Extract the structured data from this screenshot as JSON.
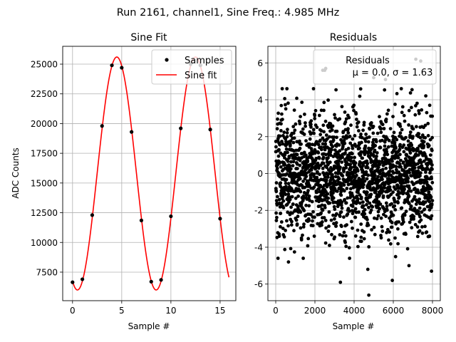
{
  "figure": {
    "suptitle": "Run 2161, channel1, Sine Freq.: 4.985 MHz"
  },
  "colors": {
    "samples": "#000000",
    "fit": "#ff0000",
    "grid": "#b0b0b0",
    "axes": "#000000"
  },
  "chart_data": [
    {
      "type": "line",
      "title": "Sine Fit",
      "xlabel": "Sample #",
      "ylabel": "ADC Counts",
      "xlim": [
        -1.0,
        16.6
      ],
      "ylim": [
        5100,
        26500
      ],
      "xticks": [
        0,
        5,
        10,
        15
      ],
      "yticks": [
        7500,
        10000,
        12500,
        15000,
        17500,
        20000,
        22500,
        25000
      ],
      "grid": true,
      "legend": {
        "position": "top-right",
        "entries": [
          "Samples",
          "Sine fit"
        ]
      },
      "series": [
        {
          "name": "Samples",
          "kind": "scatter",
          "x": [
            0,
            1,
            2,
            3,
            4,
            5,
            6,
            7,
            8,
            9,
            10,
            11,
            12,
            13,
            14,
            15
          ],
          "y": [
            6650,
            6900,
            12300,
            19800,
            24900,
            24700,
            19300,
            11850,
            6700,
            6850,
            12200,
            19600,
            25000,
            24900,
            19500,
            12000
          ]
        },
        {
          "name": "Sine fit",
          "kind": "line",
          "model": {
            "offset": 15800,
            "amplitude": 9800,
            "period": 8.0,
            "peak_x": 4.5,
            "x_range": [
              0,
              15.9
            ]
          }
        }
      ]
    },
    {
      "type": "scatter",
      "title": "Residuals",
      "xlabel": "Sample #",
      "ylabel": "",
      "xlim": [
        -400,
        8400
      ],
      "ylim": [
        -6.9,
        6.9
      ],
      "xticks": [
        0,
        2000,
        4000,
        6000,
        8000
      ],
      "yticks": [
        -6,
        -4,
        -2,
        0,
        2,
        4,
        6
      ],
      "grid": true,
      "legend": {
        "position": "top-right",
        "entries": [
          "Residuals",
          "μ = 0.0, σ = 1.63"
        ]
      },
      "series": [
        {
          "name": "Residuals",
          "stats": {
            "n": 8000,
            "mean": 0.0,
            "sigma": 1.63
          },
          "outliers": [
            {
              "x": 2400,
              "y": 5.6
            },
            {
              "x": 2550,
              "y": 5.7
            },
            {
              "x": 7150,
              "y": 6.2
            },
            {
              "x": 7400,
              "y": 6.1
            },
            {
              "x": 5000,
              "y": 5.2
            },
            {
              "x": 4750,
              "y": -6.6
            },
            {
              "x": 3300,
              "y": -5.9
            },
            {
              "x": 5950,
              "y": -5.8
            },
            {
              "x": 4700,
              "y": -5.2
            },
            {
              "x": 6800,
              "y": -5.0
            },
            {
              "x": 7950,
              "y": -5.3
            },
            {
              "x": 650,
              "y": -4.8
            },
            {
              "x": 2500,
              "y": 5.6
            },
            {
              "x": 5600,
              "y": 5.1
            }
          ]
        }
      ]
    }
  ]
}
